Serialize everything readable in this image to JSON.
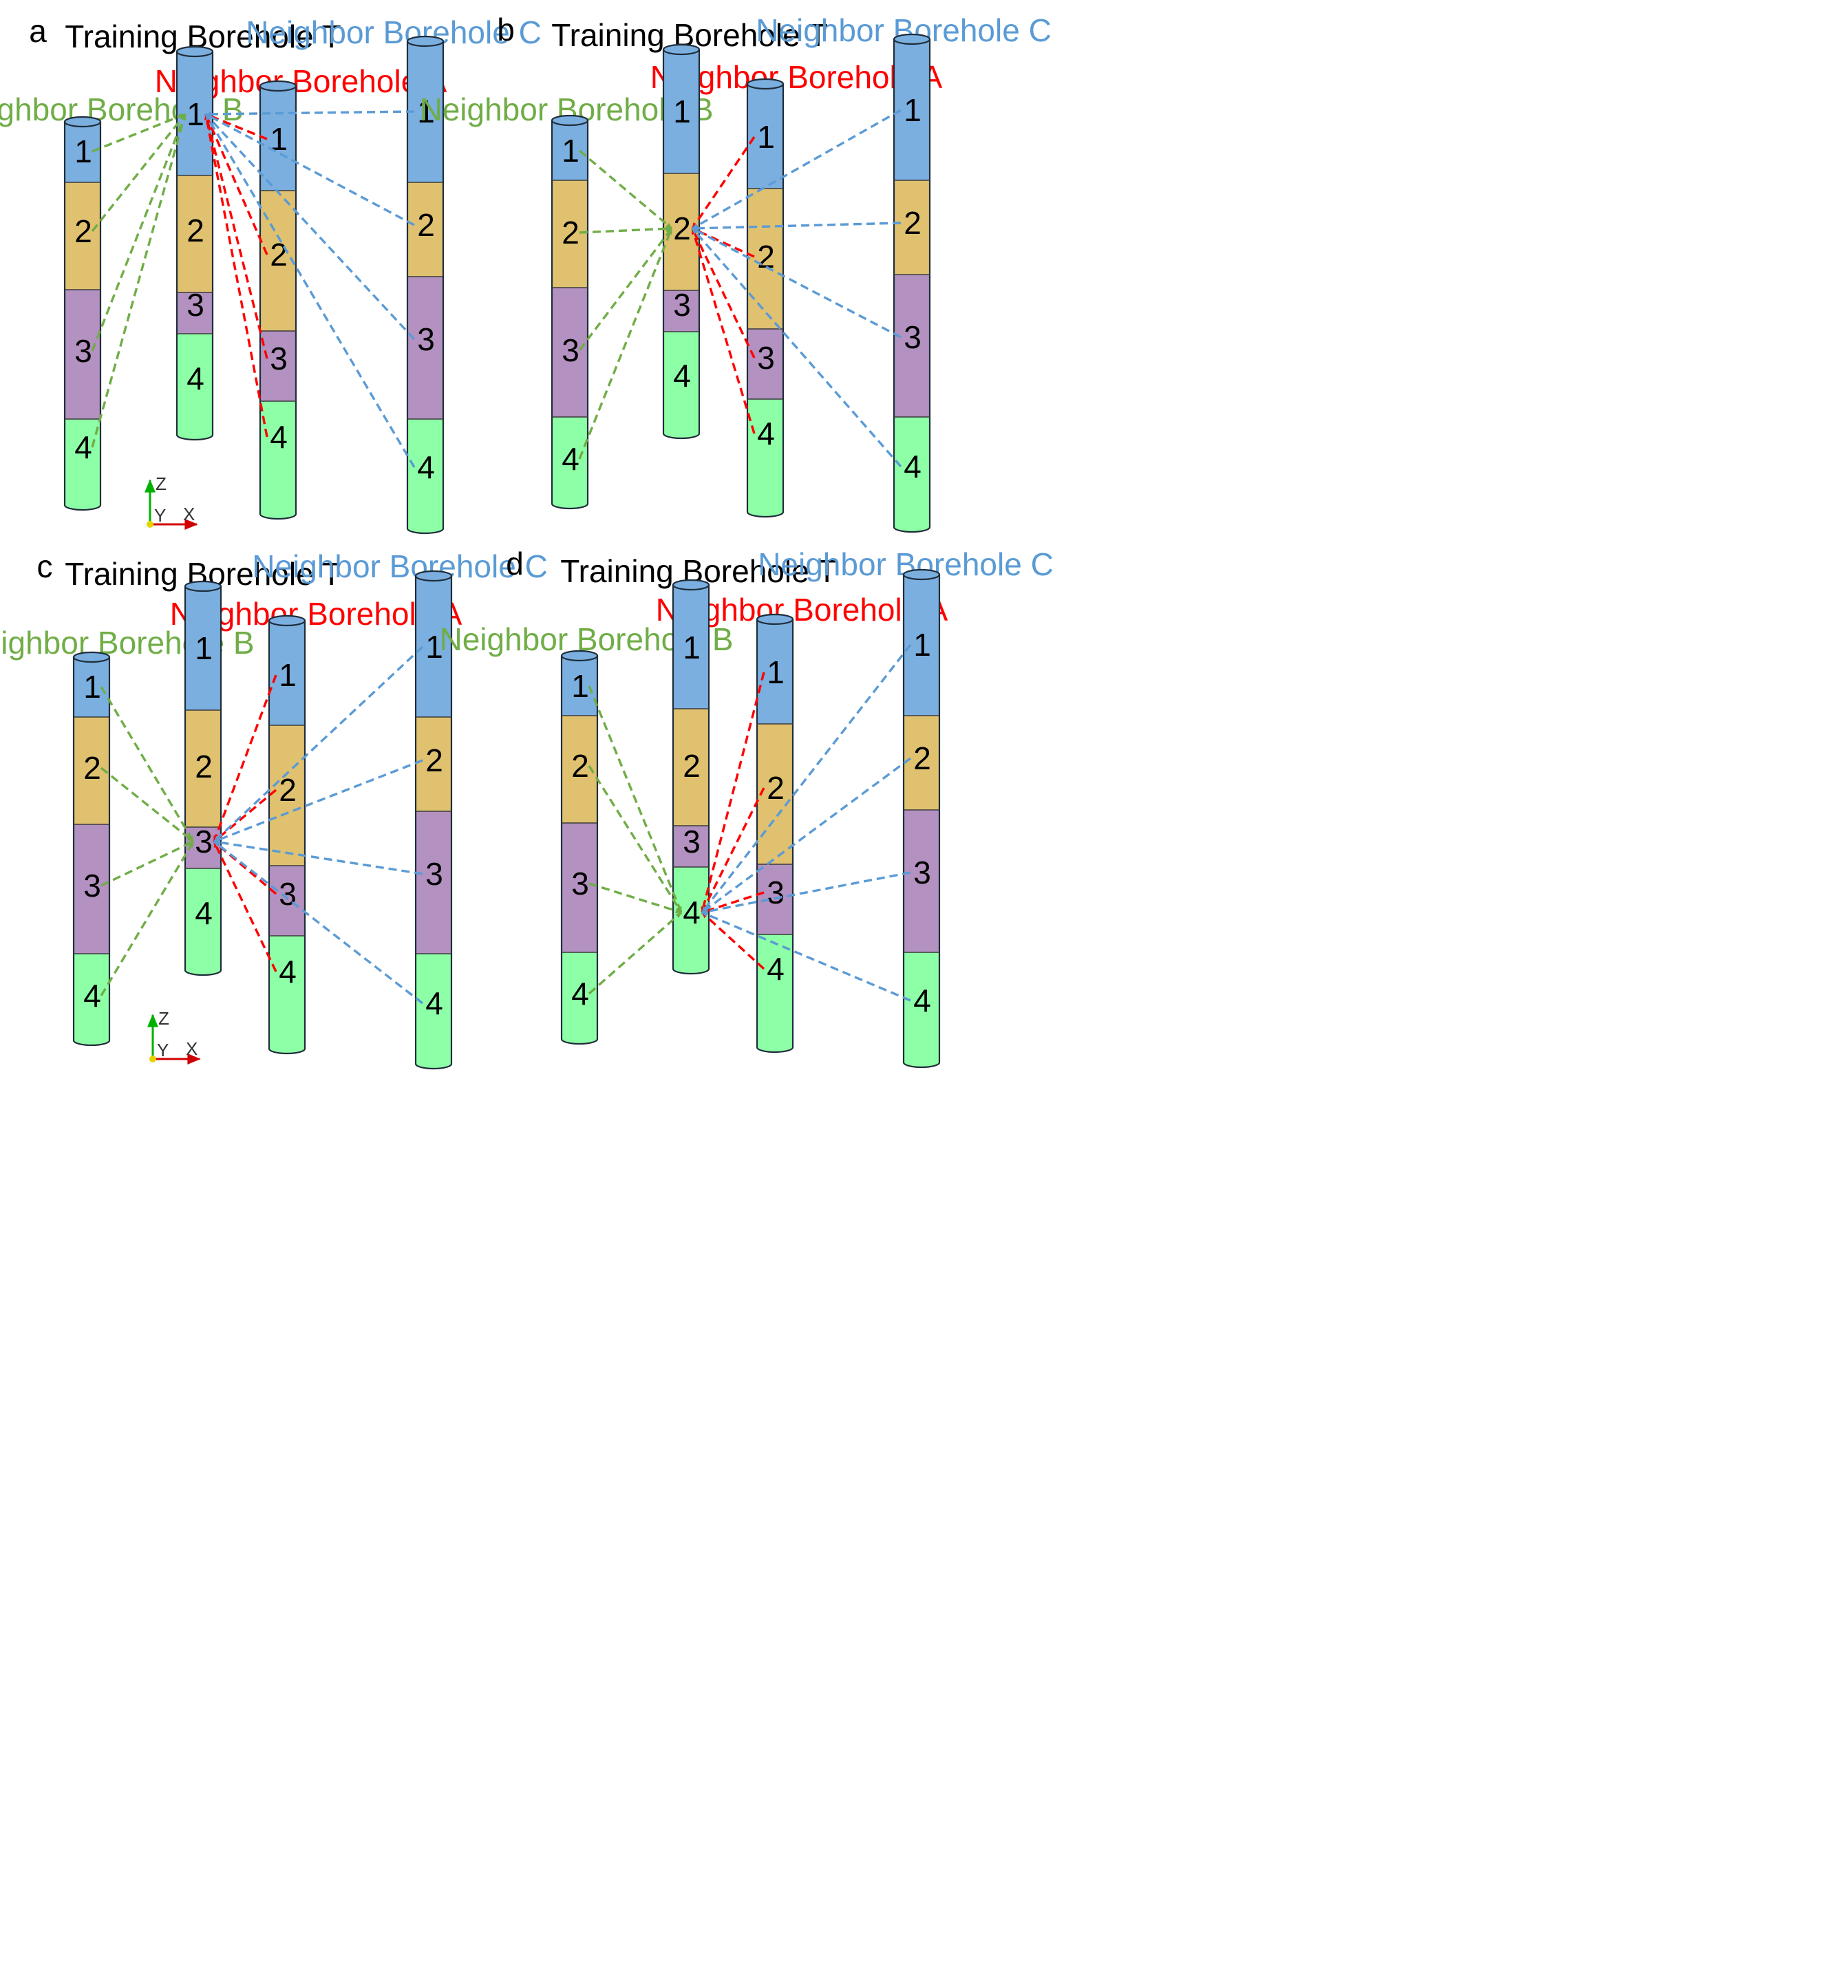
{
  "labels": {
    "training": "Training Borehole T",
    "neighbor_a": "Neighbor Borehole A",
    "neighbor_b": "Neighbor Borehole B",
    "neighbor_c": "Neighbor Borehole C"
  },
  "layer_labels": [
    "1",
    "2",
    "3",
    "4"
  ],
  "axis_labels": {
    "z": "Z",
    "y": "Y",
    "x": "X"
  },
  "colors": {
    "layer_1": "#7bafe0",
    "layer_2": "#dfc170",
    "layer_3": "#b391c0",
    "layer_4": "#8dffa6",
    "training_label": "#000000",
    "neighbor_a": "#ff0000",
    "neighbor_b": "#70ad47",
    "neighbor_c": "#5b9bd5",
    "axis_x": "#d00000",
    "axis_z": "#00b000",
    "axis_origin": "#e6d300"
  },
  "panels": [
    {
      "letter": "a",
      "target_layer": 1,
      "show_axes": true
    },
    {
      "letter": "b",
      "target_layer": 2,
      "show_axes": false
    },
    {
      "letter": "c",
      "target_layer": 3,
      "show_axes": true
    },
    {
      "letter": "d",
      "target_layer": 4,
      "show_axes": false
    }
  ]
}
